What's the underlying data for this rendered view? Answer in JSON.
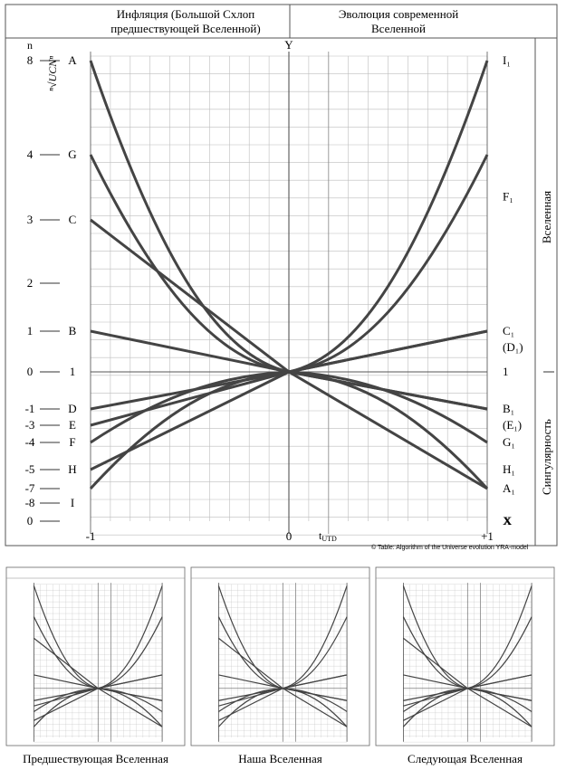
{
  "header": {
    "left_line1": "Инфляция  (Большой Схлоп",
    "left_line2": "предшествующей Вселенной)",
    "right_line1": "Эволюция современной",
    "right_line2": "Вселенной"
  },
  "side_labels": {
    "upper": "Вселенная",
    "lower": "Сингулярность"
  },
  "y_axis_title": "ⁿ√UCNⁿ",
  "n_label": "n",
  "y_label": "Y",
  "x_axis_label": "t",
  "x_axis_subscript": "UTD",
  "x_end_label": "X",
  "x_ticks": [
    "-1",
    "0",
    "+1"
  ],
  "copyright": "© Table: Algorithm of the Universe evolution YRA-model",
  "row_labels": [
    {
      "n": "8",
      "left": "A",
      "right": "I₁",
      "right_y": 8,
      "at": 8
    },
    {
      "n": "4",
      "left": "G",
      "right": "F₁",
      "right_y": 4.3,
      "at": 4
    },
    {
      "n": "3",
      "left": "C",
      "right": "",
      "at": 3
    },
    {
      "n": "2",
      "left": "",
      "right": "",
      "at": 2
    },
    {
      "n": "1",
      "left": "B",
      "right": "C₁",
      "right2": "(D₁)",
      "at": 1
    },
    {
      "n": "0",
      "left": "1",
      "right": "1",
      "at": 0
    },
    {
      "n": "-1",
      "left": "D",
      "right": "B₁",
      "right2": "(E₁)",
      "at": -1
    },
    {
      "n": "-3",
      "left": "E",
      "right": "",
      "at": -1.5
    },
    {
      "n": "-4",
      "left": "F",
      "right": "G₁",
      "at": -2
    },
    {
      "n": "-5",
      "left": "H",
      "right": "H₁",
      "at": -2.5
    },
    {
      "n": "-7",
      "left": "",
      "right": "A₁",
      "at": -3
    },
    {
      "n": "-8",
      "left": "I",
      "right": "",
      "at": -3.5
    },
    {
      "n": "0",
      "left": "",
      "right": "X",
      "at": -4
    }
  ],
  "chart_data": {
    "type": "line",
    "xlim": [
      -1,
      1
    ],
    "ylim": [
      -4,
      8
    ],
    "grid": true,
    "series": [
      {
        "left": "A",
        "right": "A₁",
        "shape": "exp",
        "y_left": 8,
        "y_right": -3
      },
      {
        "left": "I",
        "right": "I₁",
        "shape": "exp",
        "y_left": -3,
        "y_right": 8
      },
      {
        "left": "G",
        "right": "G₁",
        "shape": "exp",
        "y_left": 4,
        "y_right": -2
      },
      {
        "left": "F",
        "right": "F₁",
        "shape": "exp",
        "y_left": -2,
        "y_right": 4
      },
      {
        "left": "C",
        "right": "C₁",
        "shape": "line",
        "y_left": 3,
        "y_right": 1
      },
      {
        "left": "B",
        "right": "B₁",
        "shape": "line",
        "y_left": 1,
        "y_right": -1
      },
      {
        "left": "D",
        "right": "D₁",
        "shape": "line",
        "y_left": -1,
        "y_right": 1
      },
      {
        "left": "E",
        "right": "E₁",
        "shape": "line",
        "y_left": -1.5,
        "y_right": -1
      },
      {
        "left": "H",
        "right": "H₁",
        "shape": "line",
        "y_left": -2.5,
        "y_right": -3
      }
    ]
  },
  "thumbnails": [
    {
      "caption": "Предшествующая Вселенная"
    },
    {
      "caption": "Наша Вселенная"
    },
    {
      "caption": "Следующая Вселенная"
    }
  ]
}
